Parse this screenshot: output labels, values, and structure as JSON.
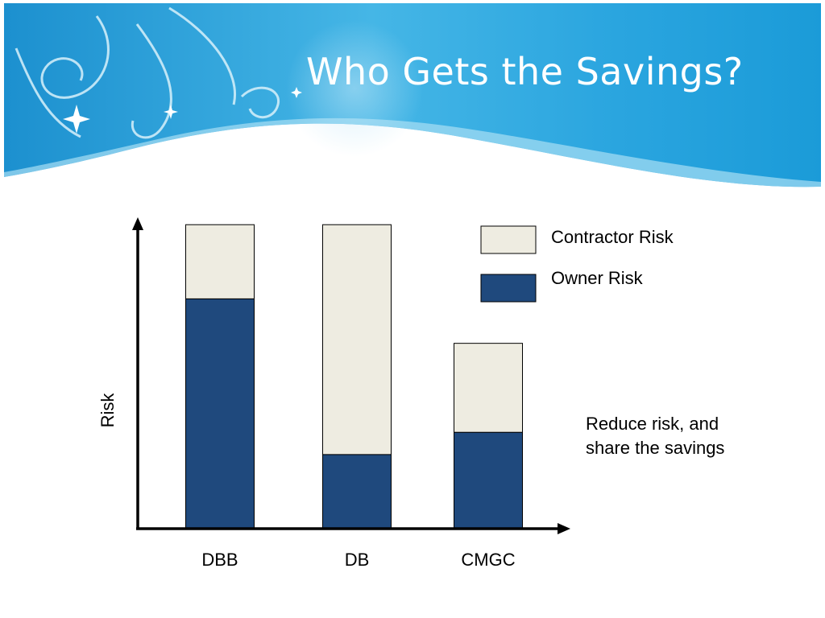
{
  "slide": {
    "title": "Who Gets the Savings?",
    "annotation_lines": [
      "Reduce risk, and",
      "share the savings"
    ]
  },
  "chart_data": {
    "type": "bar",
    "stacked": true,
    "categories": [
      "DBB",
      "DB",
      "CMGC"
    ],
    "series": [
      {
        "name": "Owner Risk",
        "values": [
          3.1,
          1.0,
          1.3
        ],
        "color": "#1f497d"
      },
      {
        "name": "Contractor Risk",
        "values": [
          1.0,
          3.1,
          1.2
        ],
        "color": "#eeece1"
      }
    ],
    "ylabel": "Risk",
    "xlabel": "",
    "ylim": [
      0,
      4.2
    ],
    "grid": false,
    "legend_position": "top-right",
    "axis_ticks_shown": false
  },
  "colors": {
    "header_blue": "#29a6dc",
    "header_light": "#8fd3f0",
    "axis": "#000000"
  }
}
